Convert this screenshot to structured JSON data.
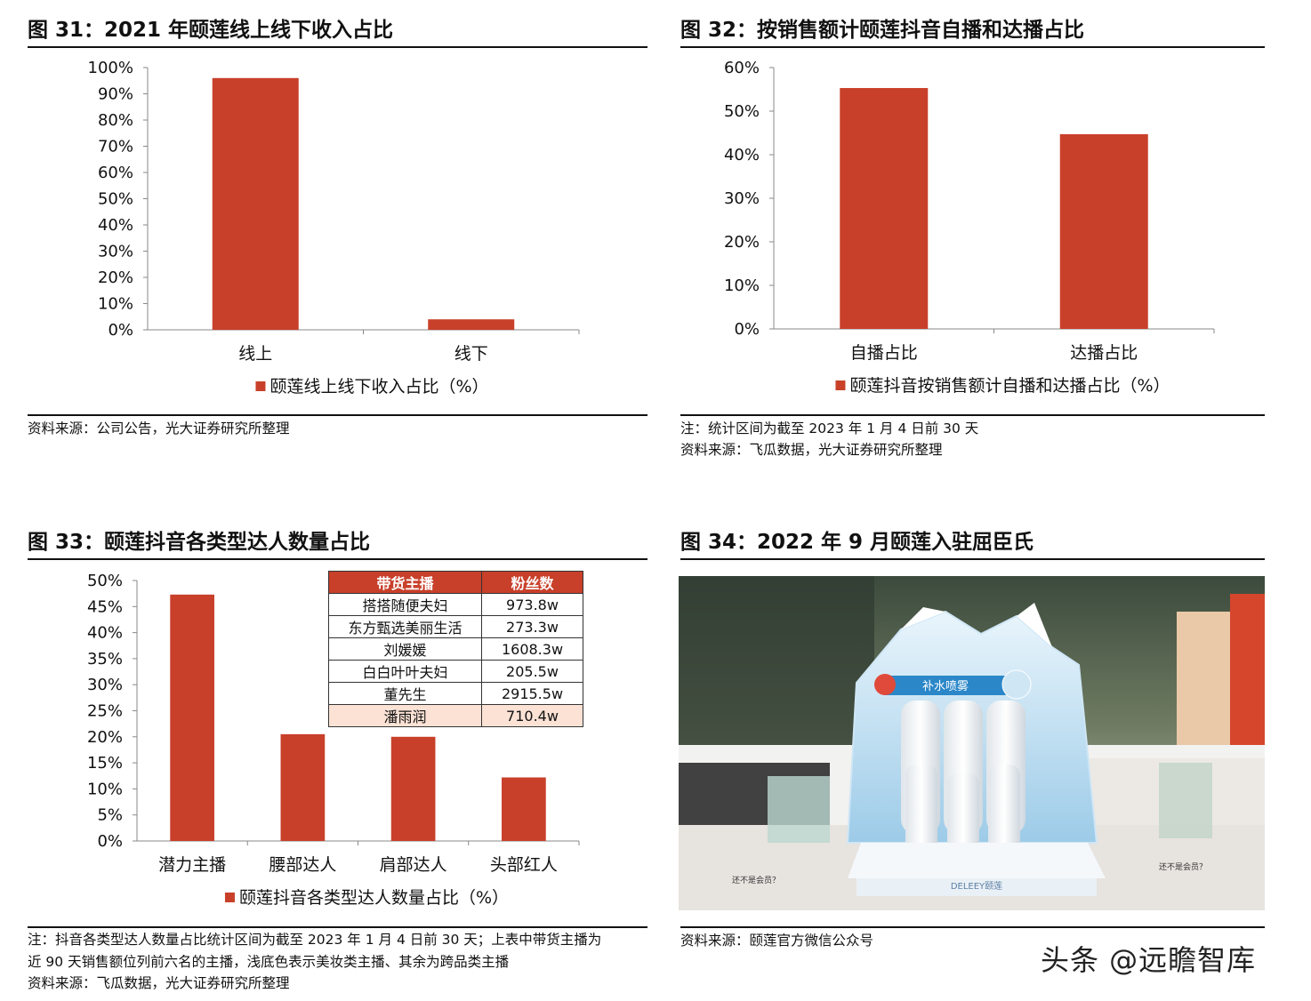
{
  "colors": {
    "bar": "#c8402a",
    "axis": "#888888",
    "table_header": "#c8402a",
    "table_highlight": "#fbe2d5"
  },
  "figures": {
    "fig31": {
      "title": "图 31：2021 年颐莲线上线下收入占比",
      "source": "资料来源：公司公告，光大证券研究所整理",
      "legend": "颐莲线上线下收入占比（%）"
    },
    "fig32": {
      "title": "图 32：按销售额计颐莲抖音自播和达播占比",
      "note": "注：统计区间为截至 2023 年 1 月 4 日前 30 天",
      "source": "资料来源：飞瓜数据，光大证券研究所整理",
      "legend": "颐莲抖音按销售额计自播和达播占比（%）"
    },
    "fig33": {
      "title": "图 33：颐莲抖音各类型达人数量占比",
      "note_line1": "注：抖音各类型达人数量占比统计区间为截至 2023 年 1 月 4 日前 30 天；上表中带货主播为",
      "note_line2": "近 90 天销售额位列前六名的主播，浅底色表示美妆类主播、其余为跨品类主播",
      "source": "资料来源：飞瓜数据，光大证券研究所整理",
      "legend": "颐莲抖音各类型达人数量占比（%）",
      "table": {
        "headers": [
          "带货主播",
          "粉丝数"
        ],
        "rows": [
          [
            "搭搭随便夫妇",
            "973.8w"
          ],
          [
            "东方甄选美丽生活",
            "273.3w"
          ],
          [
            "刘媛媛",
            "1608.3w"
          ],
          [
            "白白叶叶夫妇",
            "205.5w"
          ],
          [
            "董先生",
            "2915.5w"
          ],
          [
            "潘雨润",
            "710.4w"
          ]
        ],
        "highlighted_row": "潘雨润"
      }
    },
    "fig34": {
      "title": "图 34：2022 年 9 月颐莲入驻屈臣氏",
      "source": "资料来源：颐莲官方微信公众号"
    }
  },
  "chart_data": [
    {
      "type": "bar",
      "categories": [
        "线上",
        "线下"
      ],
      "values": [
        96,
        4
      ],
      "ylim": [
        0,
        100
      ],
      "yticks": [
        "0%",
        "10%",
        "20%",
        "30%",
        "40%",
        "50%",
        "60%",
        "70%",
        "80%",
        "90%",
        "100%"
      ],
      "series_name": "颐莲线上线下收入占比（%）"
    },
    {
      "type": "bar",
      "categories": [
        "自播占比",
        "达播占比"
      ],
      "values": [
        55.3,
        44.7
      ],
      "ylim": [
        0,
        60
      ],
      "yticks": [
        "0%",
        "10%",
        "20%",
        "30%",
        "40%",
        "50%",
        "60%"
      ],
      "series_name": "颐莲抖音按销售额计自播和达播占比（%）"
    },
    {
      "type": "bar",
      "categories": [
        "潜力主播",
        "腰部达人",
        "肩部达人",
        "头部红人"
      ],
      "values": [
        47.3,
        20.5,
        20,
        12.2
      ],
      "ylim": [
        0,
        50
      ],
      "yticks": [
        "0%",
        "5%",
        "10%",
        "15%",
        "20%",
        "25%",
        "30%",
        "35%",
        "40%",
        "45%",
        "50%"
      ],
      "series_name": "颐莲抖音各类型达人数量占比（%）"
    }
  ],
  "photo": {
    "display_top_text": "补水喷雾",
    "bottle_label": "DELEEY颐莲",
    "banner_left": "还不是会员？",
    "banner_right": "还不是会员？"
  },
  "watermark": "头条 @远瞻智库"
}
